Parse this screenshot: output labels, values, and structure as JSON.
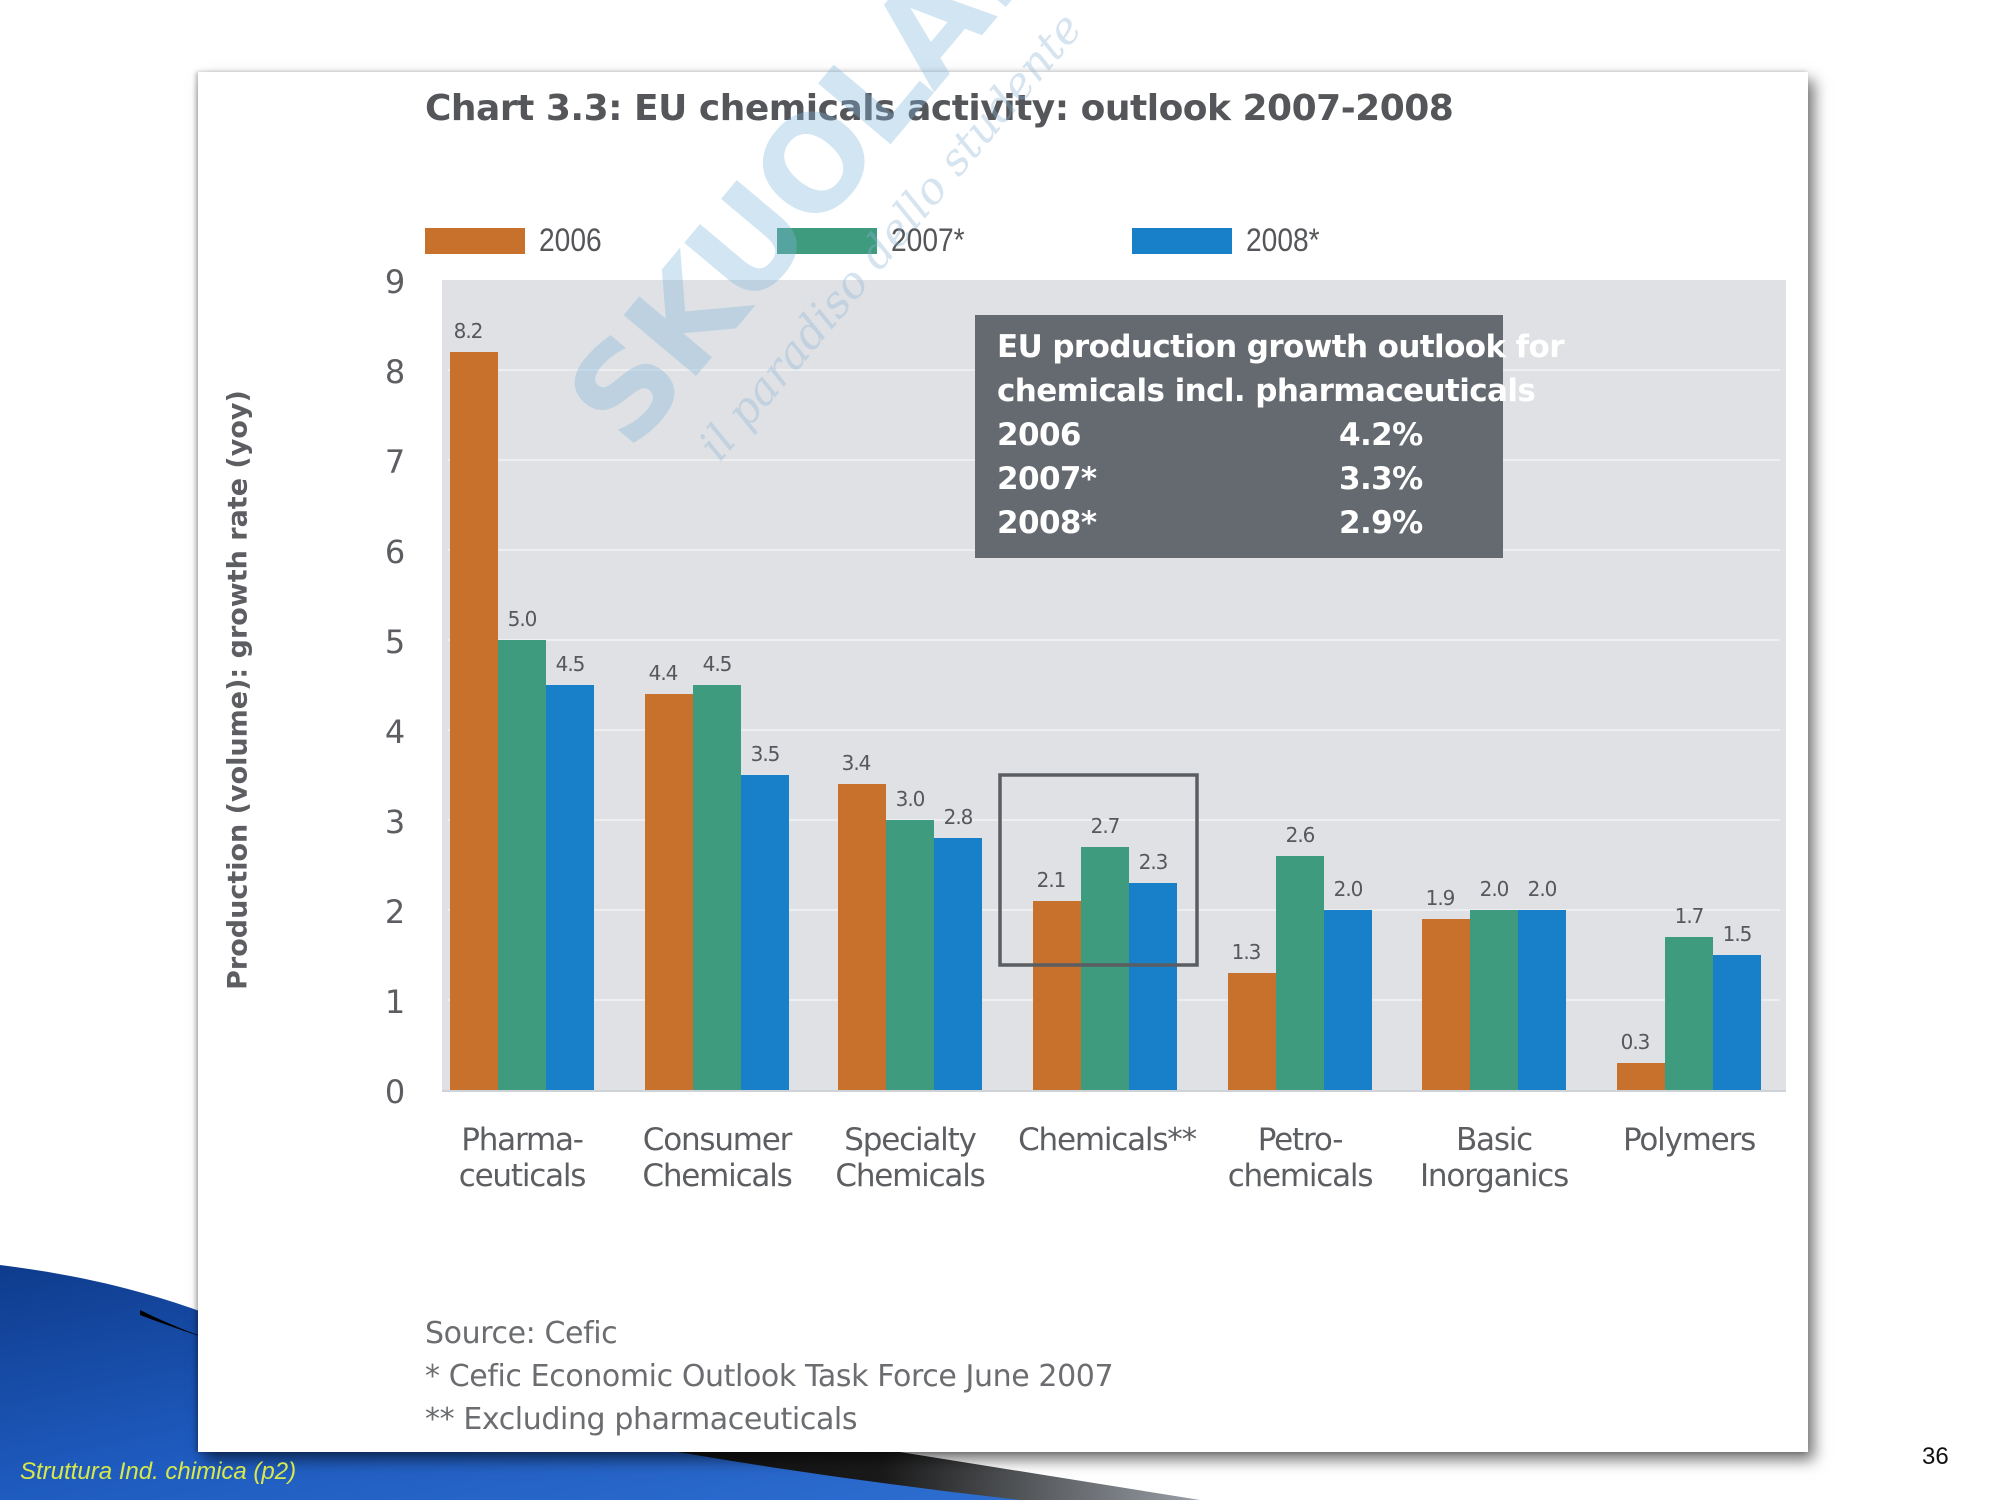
{
  "slide": {
    "footer_text": "Struttura Ind. chimica (p2)",
    "page_number": "36",
    "background_colors": {
      "blue": "#1c4fa6",
      "dark": "#0b0b0b",
      "footer_text": "#d7e84a"
    }
  },
  "watermark": {
    "brand": "SKUOLA.net",
    "tagline": "il paradiso dello studente"
  },
  "chart_data": {
    "type": "bar",
    "title": "Chart 3.3: EU chemicals activity: outlook 2007-2008",
    "xlabel": "",
    "ylabel": "Production (volume): growth rate (yoy)",
    "ylim": [
      0,
      9
    ],
    "yticks": [
      "0",
      "1",
      "2",
      "3",
      "4",
      "5",
      "6",
      "7",
      "8",
      "9"
    ],
    "grid": true,
    "legend_position": "top",
    "categories": [
      [
        "Pharma-",
        "ceuticals"
      ],
      [
        "Consumer",
        "Chemicals"
      ],
      [
        "Specialty",
        "Chemicals"
      ],
      [
        "Chemicals**",
        ""
      ],
      [
        "Petro-",
        "chemicals"
      ],
      [
        "Basic",
        "Inorganics"
      ],
      [
        "Polymers",
        ""
      ]
    ],
    "series": [
      {
        "name": "2006",
        "color": "#c8712c",
        "values": [
          8.2,
          4.4,
          3.4,
          2.1,
          1.3,
          1.9,
          0.3
        ],
        "labels": [
          "8.2",
          "4.4",
          "3.4",
          "2.1",
          "1.3",
          "1.9",
          "0.3"
        ]
      },
      {
        "name": "2007*",
        "color": "#3f9b7e",
        "values": [
          5.0,
          4.5,
          3.0,
          2.7,
          2.6,
          2.0,
          1.7
        ],
        "labels": [
          "5.0",
          "4.5",
          "3.0",
          "2.7",
          "2.6",
          "2.0",
          "1.7"
        ]
      },
      {
        "name": "2008*",
        "color": "#1880c8",
        "values": [
          4.5,
          3.5,
          2.8,
          2.3,
          2.0,
          2.0,
          1.5
        ],
        "labels": [
          "4.5",
          "3.5",
          "2.8",
          "2.3",
          "2.0",
          "2.0",
          "1.5"
        ]
      }
    ],
    "highlighted_category": "Chemicals**",
    "plot_background": "#dfe1e4",
    "annotation_box": {
      "heading": [
        "EU production growth outlook for",
        "chemicals incl. pharmaceuticals"
      ],
      "rows": [
        {
          "year": "2006",
          "value": "4.2%"
        },
        {
          "year": "2007*",
          "value": "3.3%"
        },
        {
          "year": "2008*",
          "value": "2.9%"
        }
      ],
      "background": "#646a70"
    },
    "notes": [
      "Source: Cefic",
      "* Cefic Economic Outlook Task Force June 2007",
      "** Excluding pharmaceuticals"
    ]
  }
}
